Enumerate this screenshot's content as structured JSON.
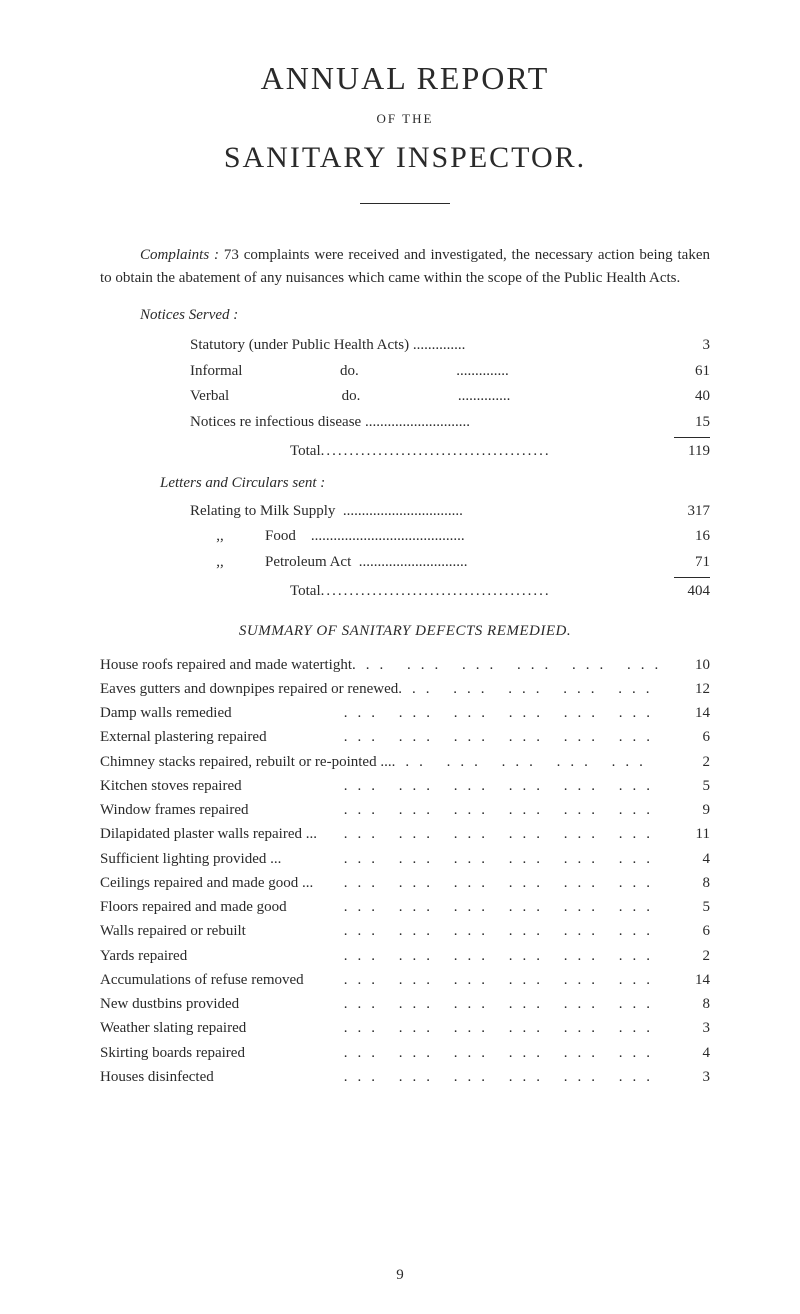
{
  "titles": {
    "main": "ANNUAL REPORT",
    "of_the": "OF THE",
    "sub": "SANITARY INSPECTOR."
  },
  "intro": {
    "complaints_label": "Complaints :",
    "text": " 73 complaints were received and investigated, the necessary action being taken to obtain the abatement of any nuisances which came within the scope of the Public Health Acts."
  },
  "notices": {
    "heading": "Notices Served :",
    "rows": [
      {
        "label": "Statutory (under Public Health Acts) ..............",
        "value": "3"
      },
      {
        "label": "Informal                          do.                          ..............",
        "value": "61"
      },
      {
        "label": "Verbal                              do.                          ..............",
        "value": "40"
      },
      {
        "label": "Notices re infectious disease ............................",
        "value": "15"
      }
    ],
    "total_label": "Total  ",
    "total_dots": "........................................",
    "total_value": "119"
  },
  "letters": {
    "heading": "Letters and Circulars sent :",
    "rows": [
      {
        "label": "Relating to Milk Supply  ................................",
        "value": "317"
      },
      {
        "label": "       ,,           Food    .........................................",
        "value": "16"
      },
      {
        "label": "       ,,           Petroleum Act  .............................",
        "value": "71"
      }
    ],
    "total_label": "Total  ",
    "total_dots": "........................................",
    "total_value": "404"
  },
  "summary": {
    "heading": "SUMMARY OF SANITARY DEFECTS REMEDIED.",
    "rows": [
      {
        "label": "House roofs repaired and made watertight",
        "value": "10"
      },
      {
        "label": "Eaves gutters and downpipes repaired or renewed",
        "value": "12"
      },
      {
        "label": "Damp walls remedied",
        "value": "14"
      },
      {
        "label": "External plastering repaired",
        "value": "6"
      },
      {
        "label": "Chimney stacks repaired, rebuilt or re-pointed ...",
        "value": "2"
      },
      {
        "label": "Kitchen stoves repaired",
        "value": "5"
      },
      {
        "label": "Window frames repaired",
        "value": "9"
      },
      {
        "label": "Dilapidated plaster walls repaired ...",
        "value": "11"
      },
      {
        "label": "Sufficient lighting provided ...",
        "value": "4"
      },
      {
        "label": "Ceilings repaired and made good ...",
        "value": "8"
      },
      {
        "label": "Floors repaired and made good",
        "value": "5"
      },
      {
        "label": "Walls repaired or rebuilt",
        "value": "6"
      },
      {
        "label": "Yards repaired",
        "value": "2"
      },
      {
        "label": "Accumulations of refuse removed",
        "value": "14"
      },
      {
        "label": "New dustbins provided",
        "value": "8"
      },
      {
        "label": "Weather slating repaired",
        "value": "3"
      },
      {
        "label": "Skirting boards repaired",
        "value": "4"
      },
      {
        "label": "Houses disinfected",
        "value": "3"
      }
    ]
  },
  "page_number": "9",
  "styling": {
    "background_color": "#ffffff",
    "text_color": "#2a2a2a",
    "main_title_fontsize": 32,
    "sub_title_fontsize": 30,
    "body_fontsize": 15,
    "font_family": "Georgia, Times New Roman, serif"
  }
}
